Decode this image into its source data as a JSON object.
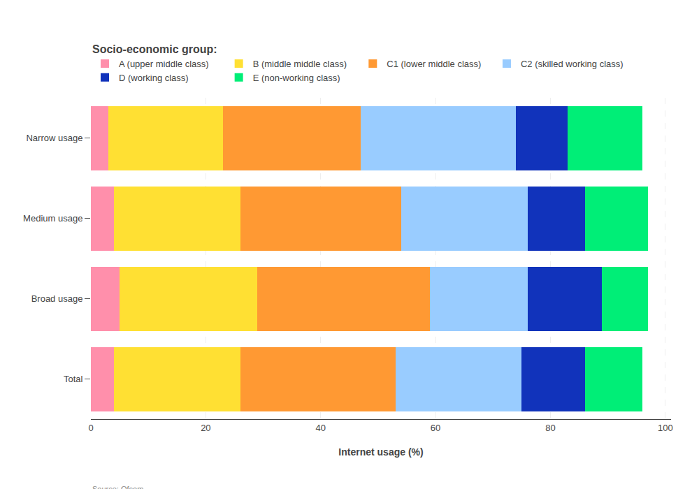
{
  "chart_data": {
    "type": "bar",
    "orientation": "horizontal",
    "stacked": true,
    "categories": [
      "Narrow usage",
      "Medium usage",
      "Broad usage",
      "Total"
    ],
    "series": [
      {
        "name": "A (upper middle class)",
        "color": "#FF8FAB",
        "values": [
          3,
          4,
          5,
          4
        ]
      },
      {
        "name": "B (middle middle class)",
        "color": "#FFE033",
        "values": [
          20,
          22,
          24,
          22
        ]
      },
      {
        "name": "C1 (lower middle class)",
        "color": "#FF9933",
        "values": [
          24,
          28,
          30,
          27
        ]
      },
      {
        "name": "C2 (skilled working class)",
        "color": "#99CCFF",
        "values": [
          27,
          22,
          17,
          22
        ]
      },
      {
        "name": "D (working class)",
        "color": "#1133BB",
        "values": [
          9,
          10,
          13,
          11
        ]
      },
      {
        "name": "E (non-working class)",
        "color": "#00EE77",
        "values": [
          13,
          11,
          8,
          10
        ]
      }
    ],
    "xlabel": "Internet usage (%)",
    "xlim": [
      0,
      101
    ],
    "xticks": [
      0,
      20,
      40,
      60,
      80,
      100
    ],
    "legend_title": "Socio-economic group:",
    "legend": "upper left",
    "source": "Source: Ofcom",
    "grid": true
  }
}
